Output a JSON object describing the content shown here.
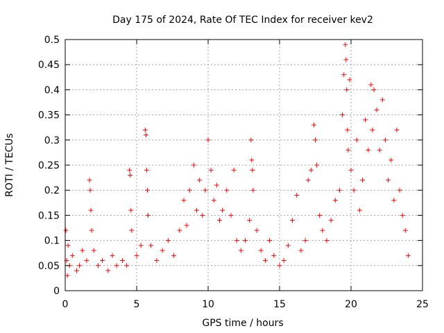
{
  "chart_data": {
    "type": "scatter",
    "title": "Day 175 of 2024, Rate Of TEC Index for receiver kev2",
    "xlabel": "GPS time / hours",
    "ylabel": "ROTI / TECUs",
    "xlim": [
      0,
      25
    ],
    "ylim": [
      0,
      0.5
    ],
    "xticks": [
      0,
      5,
      10,
      15,
      20,
      25
    ],
    "xtick_labels": [
      "0",
      "5",
      "10",
      "15",
      "20",
      "25"
    ],
    "yticks": [
      0,
      0.05,
      0.1,
      0.15,
      0.2,
      0.25,
      0.3,
      0.35,
      0.4,
      0.45,
      0.5
    ],
    "ytick_labels": [
      "0",
      "0.05",
      "0.1",
      "0.15",
      "0.2",
      "0.25",
      "0.3",
      "0.35",
      "0.4",
      "0.45",
      "0.5"
    ],
    "grid": true,
    "marker": "+",
    "marker_color": "#ff0000",
    "series": [
      {
        "name": "ROTI",
        "x": [
          0.05,
          0.1,
          0.15,
          0.2,
          0.3,
          0.5,
          0.8,
          1.0,
          1.2,
          1.5,
          1.7,
          1.75,
          1.8,
          1.85,
          2.0,
          2.3,
          2.6,
          3.0,
          3.3,
          3.6,
          4.0,
          4.3,
          4.5,
          4.55,
          4.6,
          4.65,
          5.0,
          5.3,
          5.6,
          5.65,
          5.7,
          5.75,
          5.8,
          6.0,
          6.4,
          6.8,
          7.2,
          7.6,
          8.0,
          8.3,
          8.5,
          8.7,
          9.0,
          9.2,
          9.4,
          9.6,
          9.8,
          10.0,
          10.2,
          10.4,
          10.6,
          10.8,
          11.0,
          11.3,
          11.6,
          11.8,
          12.0,
          12.3,
          12.6,
          12.9,
          13.0,
          13.05,
          13.1,
          13.15,
          13.4,
          13.7,
          14.0,
          14.3,
          14.6,
          15.0,
          15.3,
          15.6,
          15.9,
          16.2,
          16.5,
          16.8,
          17.0,
          17.2,
          17.4,
          17.5,
          17.6,
          17.8,
          18.0,
          18.3,
          18.6,
          18.9,
          19.2,
          19.4,
          19.5,
          19.6,
          19.65,
          19.7,
          19.75,
          19.8,
          19.9,
          20.0,
          20.2,
          20.4,
          20.6,
          20.8,
          21.0,
          21.2,
          21.4,
          21.5,
          21.6,
          21.8,
          22.0,
          22.2,
          22.4,
          22.6,
          22.8,
          23.0,
          23.2,
          23.4,
          23.6,
          23.8,
          24.0
        ],
        "y": [
          0.12,
          0.06,
          0.03,
          0.09,
          0.05,
          0.07,
          0.04,
          0.05,
          0.08,
          0.06,
          0.22,
          0.2,
          0.16,
          0.12,
          0.08,
          0.05,
          0.06,
          0.04,
          0.07,
          0.05,
          0.06,
          0.05,
          0.24,
          0.23,
          0.16,
          0.12,
          0.07,
          0.09,
          0.32,
          0.31,
          0.24,
          0.2,
          0.15,
          0.09,
          0.06,
          0.08,
          0.1,
          0.07,
          0.12,
          0.18,
          0.13,
          0.2,
          0.25,
          0.16,
          0.22,
          0.15,
          0.2,
          0.3,
          0.24,
          0.18,
          0.21,
          0.14,
          0.16,
          0.2,
          0.15,
          0.24,
          0.1,
          0.08,
          0.1,
          0.14,
          0.3,
          0.26,
          0.24,
          0.2,
          0.12,
          0.08,
          0.06,
          0.1,
          0.07,
          0.05,
          0.06,
          0.09,
          0.14,
          0.19,
          0.08,
          0.1,
          0.22,
          0.24,
          0.33,
          0.3,
          0.25,
          0.15,
          0.12,
          0.1,
          0.14,
          0.18,
          0.2,
          0.35,
          0.43,
          0.49,
          0.46,
          0.4,
          0.32,
          0.28,
          0.42,
          0.24,
          0.2,
          0.3,
          0.16,
          0.22,
          0.34,
          0.28,
          0.41,
          0.32,
          0.4,
          0.36,
          0.28,
          0.38,
          0.3,
          0.22,
          0.26,
          0.18,
          0.32,
          0.2,
          0.15,
          0.12,
          0.07
        ]
      }
    ]
  }
}
